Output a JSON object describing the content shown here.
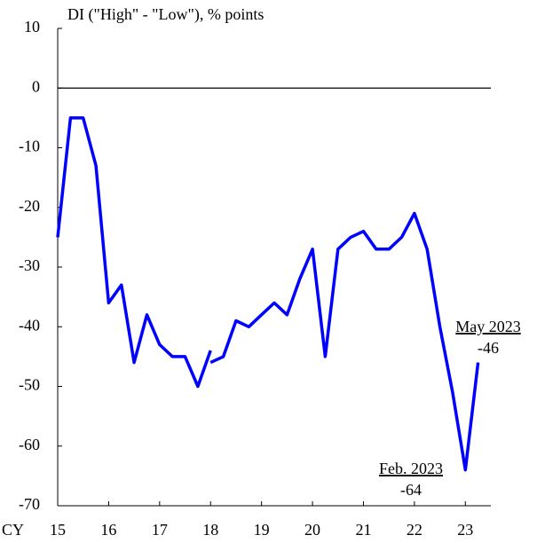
{
  "chart_data": {
    "type": "line",
    "y_label": "DI (\"High\"  - \"Low\"),  % points",
    "x_label": "CY",
    "x": [
      15,
      15.25,
      15.5,
      15.75,
      16,
      16.25,
      16.5,
      16.75,
      17,
      17.25,
      17.5,
      17.75,
      18,
      18,
      18,
      18.25,
      18.5,
      18.75,
      19,
      19.25,
      19.5,
      19.75,
      20,
      20.25,
      20.5,
      20.75,
      21,
      21.25,
      21.5,
      21.75,
      22,
      22.25,
      22.5,
      22.75,
      23,
      23.25
    ],
    "series": [
      {
        "name": "DI",
        "color": "#0000ff",
        "values": [
          -25,
          -5,
          -5,
          -13,
          -36,
          -33,
          -46,
          -38,
          -43,
          -45,
          -45,
          -50,
          -44,
          null,
          -46,
          -45,
          -39,
          -40,
          -38,
          -36,
          -38,
          -32,
          -27,
          -45,
          -27,
          -25,
          -24,
          -27,
          -27,
          -25,
          -21,
          -27,
          -40,
          -51,
          -64,
          -46
        ]
      }
    ],
    "xlim": [
      15,
      23.5
    ],
    "xticks": [
      15,
      16,
      17,
      18,
      19,
      20,
      21,
      22,
      23
    ],
    "ylim": [
      -70,
      10
    ],
    "yticks": [
      10,
      0,
      -10,
      -20,
      -30,
      -40,
      -50,
      -60,
      -70
    ],
    "zero_line": true,
    "annotations": [
      {
        "title": "May 2023",
        "text": "-46"
      },
      {
        "title": "Feb. 2023",
        "text": "-64"
      }
    ]
  }
}
